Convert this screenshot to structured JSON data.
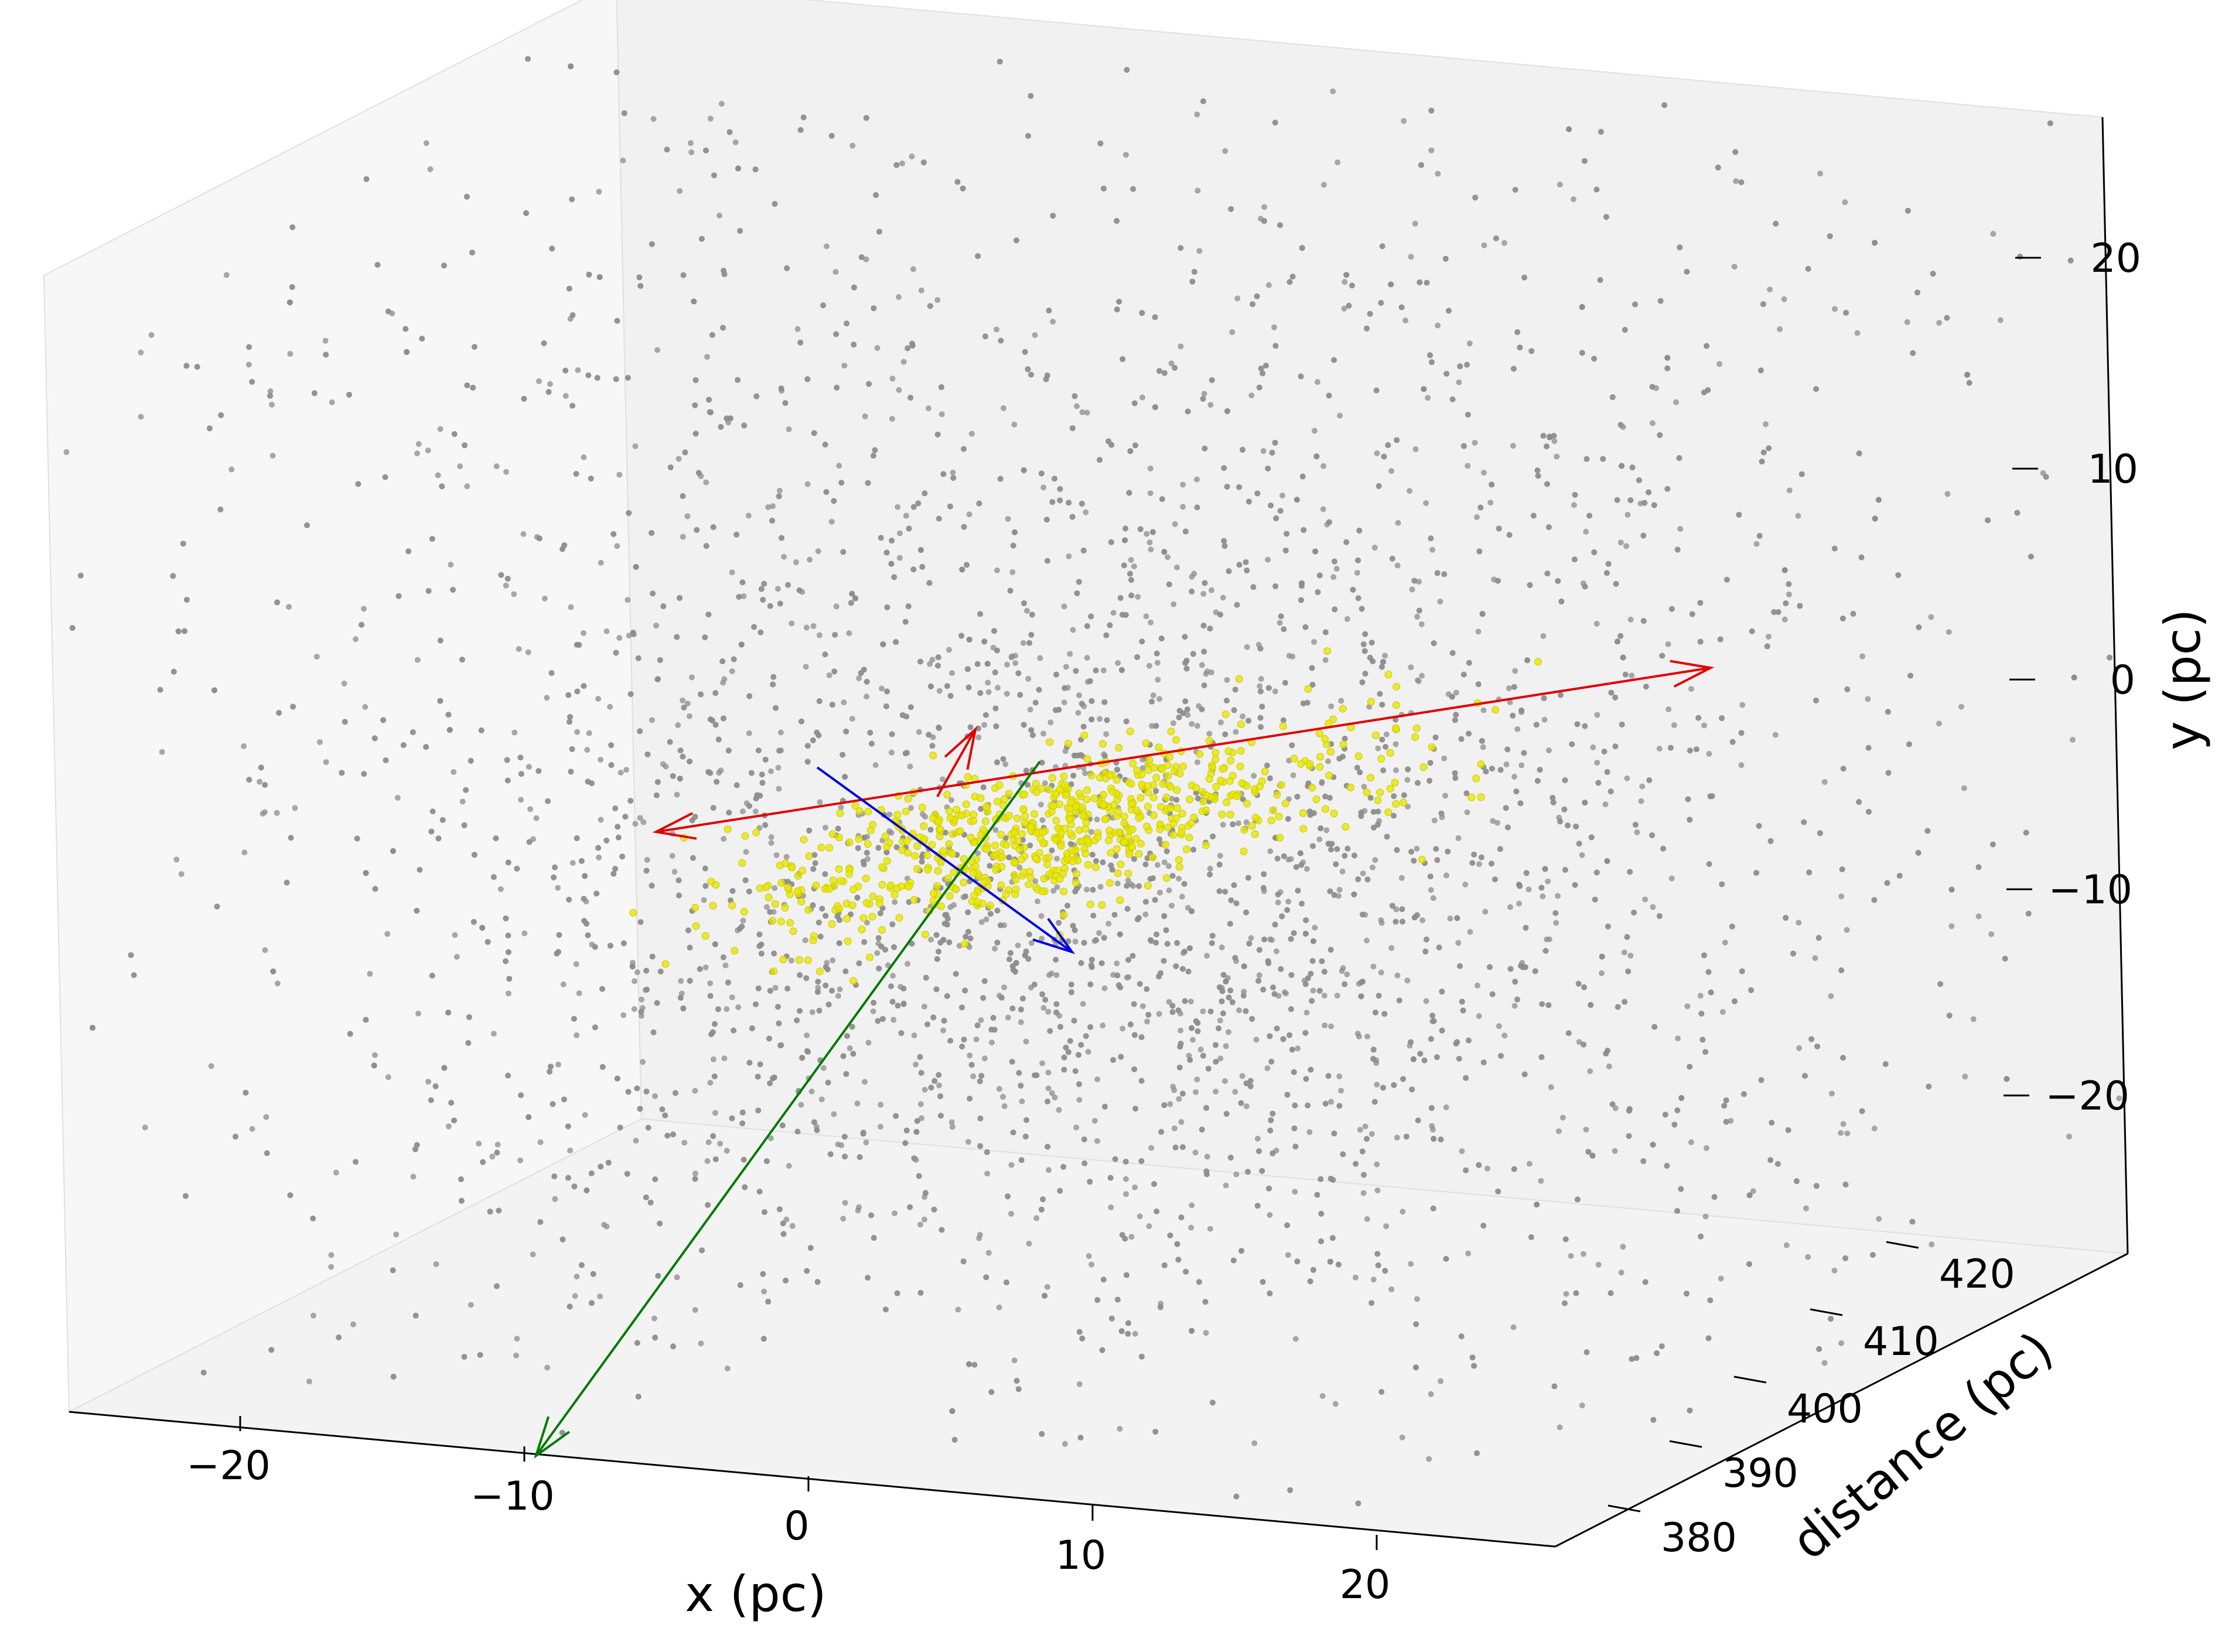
{
  "chart_data": {
    "type": "scatter3d",
    "title": "",
    "axes": {
      "x": {
        "label": "x (pc)",
        "range": [
          -25,
          25
        ],
        "ticks": [
          -20,
          -10,
          0,
          10,
          20
        ],
        "tick_labels": [
          "−20",
          "−10",
          "0",
          "10",
          "20"
        ]
      },
      "y": {
        "label": "y (pc)",
        "range": [
          -25,
          25
        ],
        "ticks": [
          -20,
          -10,
          0,
          10,
          20
        ],
        "tick_labels": [
          "−20",
          "−10",
          "0",
          "10",
          "20"
        ]
      },
      "z": {
        "label": "distance (pc)",
        "range": [
          375,
          425
        ],
        "ticks": [
          380,
          390,
          400,
          410,
          420
        ],
        "tick_labels": [
          "380",
          "390",
          "400",
          "410",
          "420"
        ]
      }
    },
    "grid": false,
    "background_color": "#ffffff",
    "pane_colors": {
      "left": "#f7f7f7",
      "back": "#f1f1f1",
      "floor": "#f3f3f3",
      "edge": "#e0e0e0"
    },
    "series": [
      {
        "kind": "background-stars",
        "color": "#8c8c8c",
        "count_shown": "many",
        "center": [
          0,
          -5,
          400
        ],
        "spread_pc": 25
      },
      {
        "kind": "selected-cluster",
        "color": "#e8e600",
        "edge_color": "#c9c900",
        "center": [
          0,
          -3,
          400
        ],
        "elongation": "along red arrow"
      }
    ],
    "vectors": [
      {
        "color": "#e00000",
        "from": [
          -17,
          -8,
          400
        ],
        "to": [
          15,
          5,
          410
        ],
        "label": ""
      },
      {
        "color": "#e00000",
        "from": [
          -1,
          -4,
          398
        ],
        "to": [
          1,
          2,
          402
        ],
        "label": ""
      },
      {
        "color": "#0000e0",
        "from": [
          -3,
          -3,
          400
        ],
        "to": [
          8,
          -12,
          393
        ],
        "label": ""
      },
      {
        "color": "#007a00",
        "from": [
          3,
          -2,
          402
        ],
        "to": [
          -10,
          -25,
          378
        ],
        "label": ""
      }
    ],
    "legend": null
  }
}
